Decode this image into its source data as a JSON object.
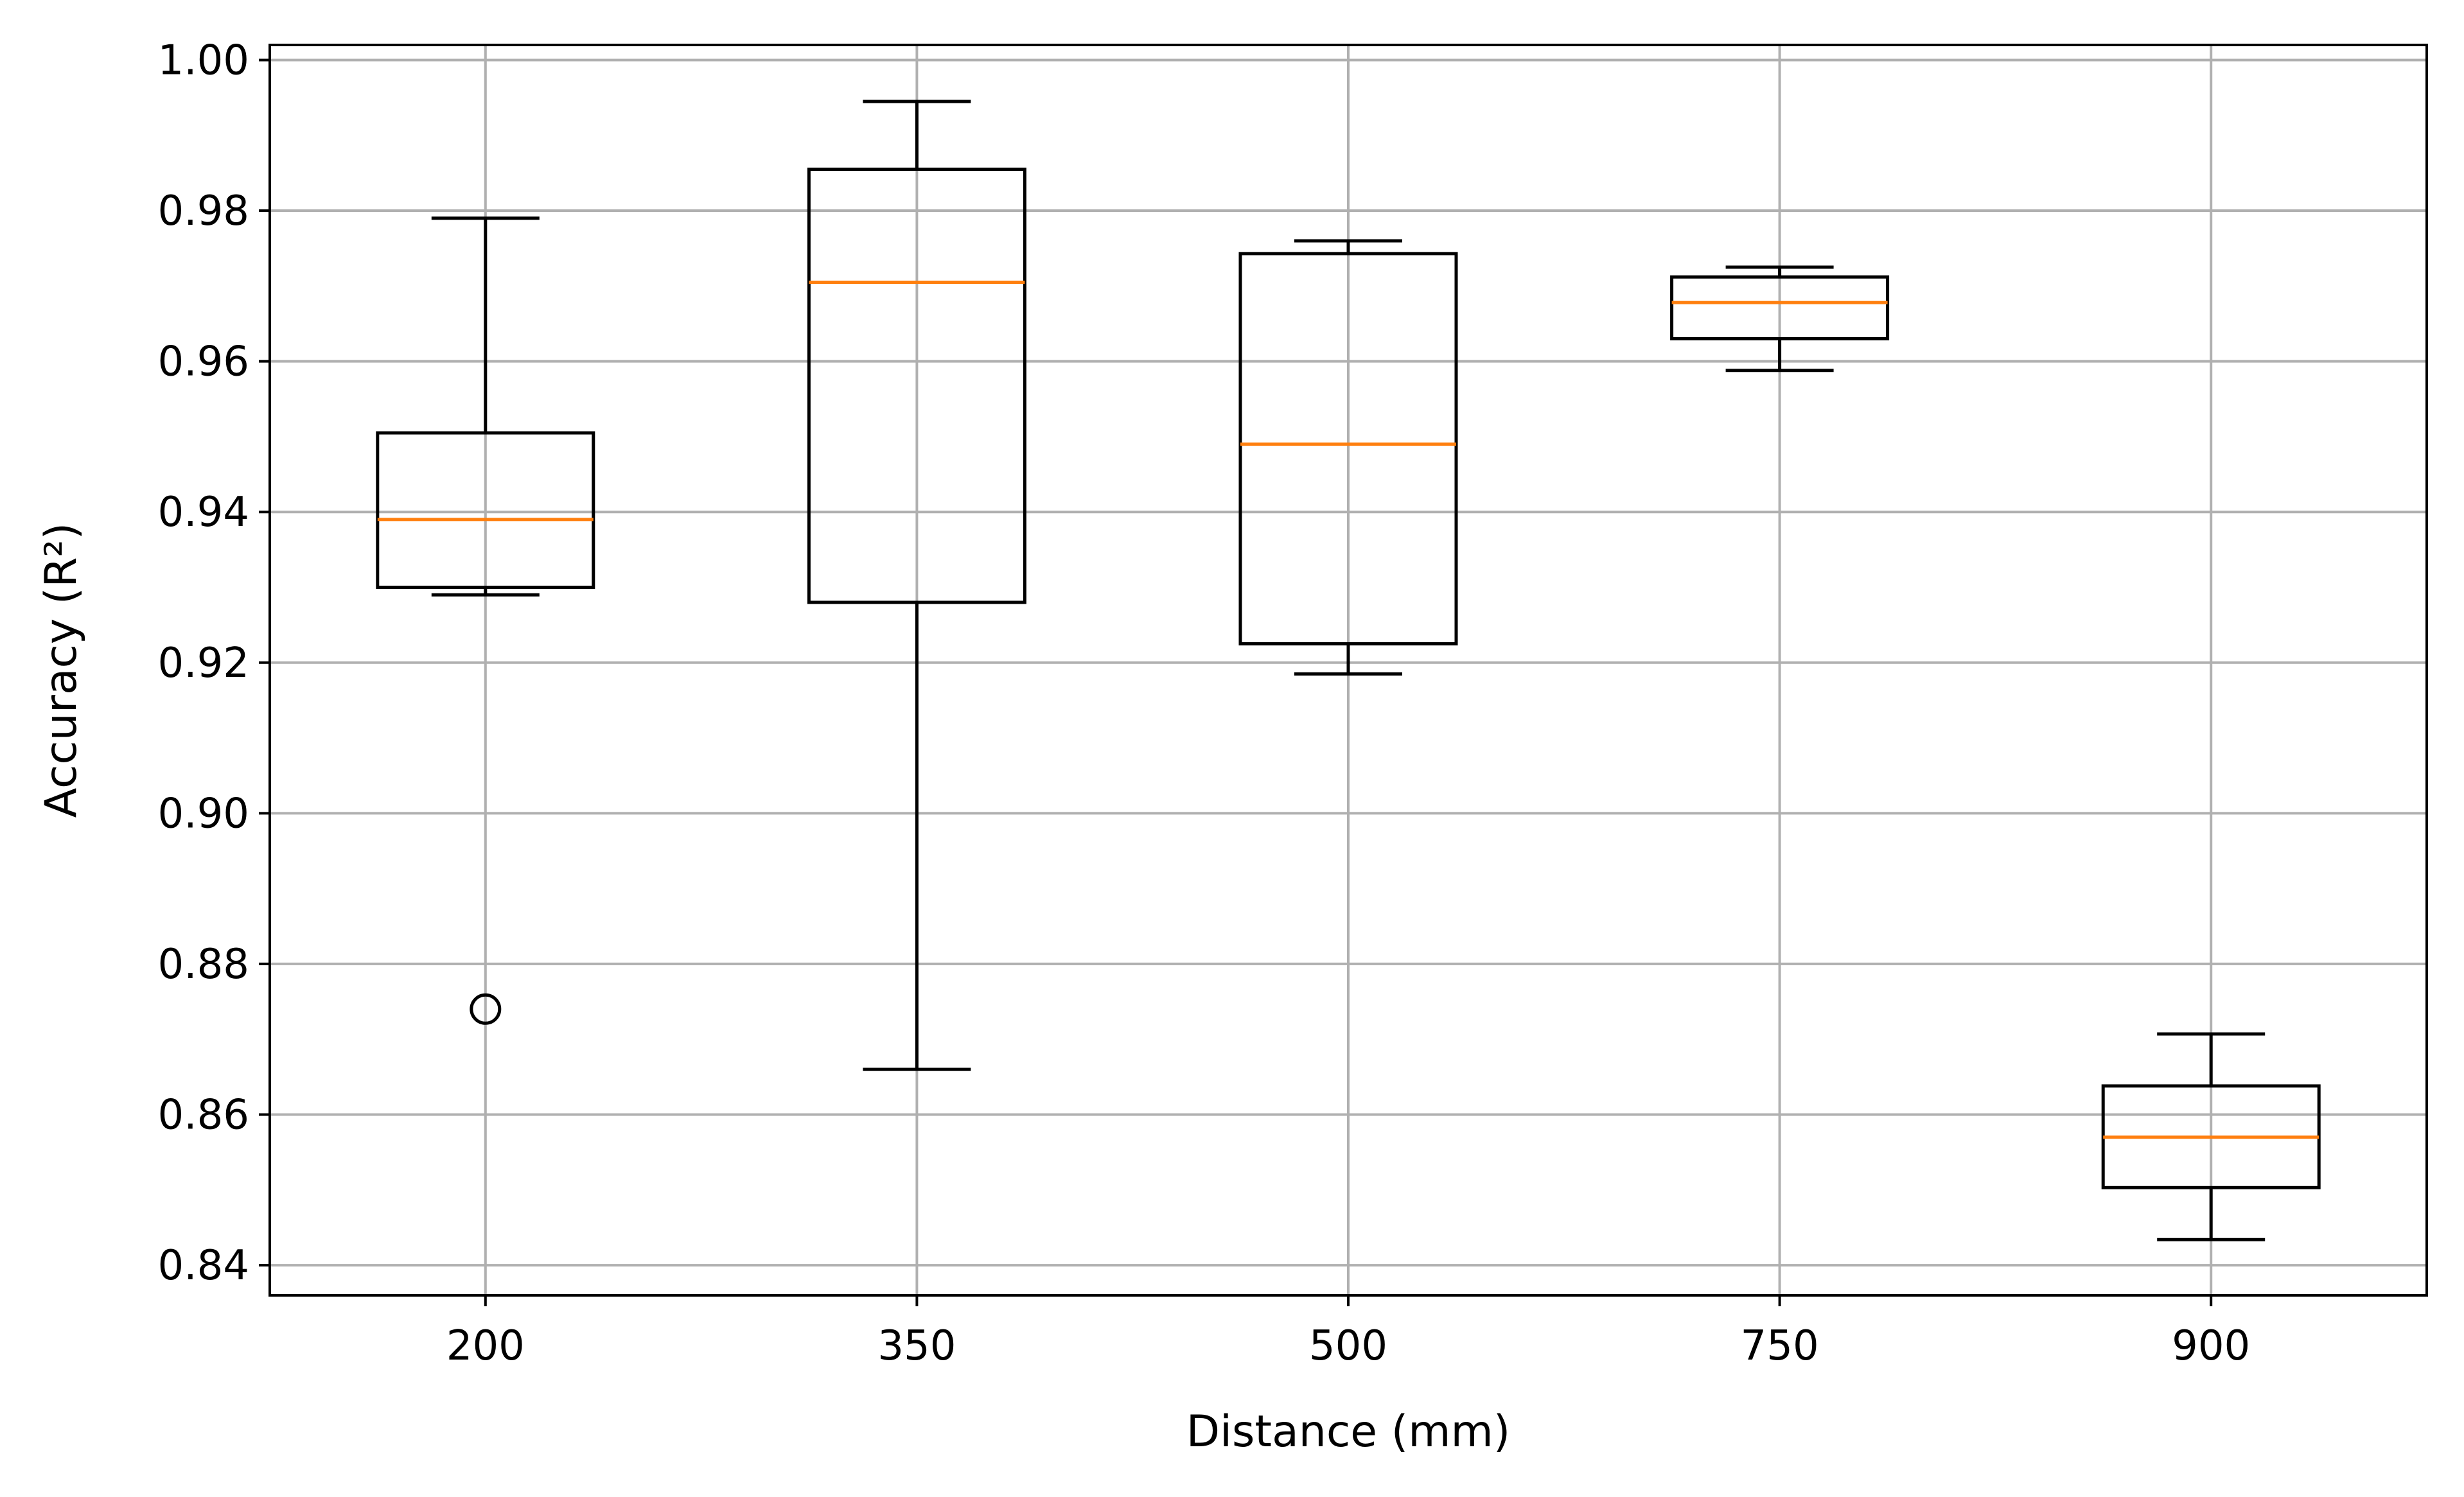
{
  "chart_data": {
    "type": "boxplot",
    "title": "",
    "xlabel": "Distance (mm)",
    "ylabel": "Accuracy (R²)",
    "categories": [
      "200",
      "350",
      "500",
      "750",
      "900"
    ],
    "ylim": [
      0.836,
      1.002
    ],
    "yticks": [
      0.84,
      0.86,
      0.88,
      0.9,
      0.92,
      0.94,
      0.96,
      0.98,
      1.0
    ],
    "ytick_labels": [
      "0.84",
      "0.86",
      "0.88",
      "0.90",
      "0.92",
      "0.94",
      "0.96",
      "0.98",
      "1.00"
    ],
    "grid": true,
    "colors": {
      "box": "#000000",
      "median": "#ff7f0e",
      "grid": "#b0b0b0"
    },
    "boxes": [
      {
        "category": "200",
        "whisker_low": 0.929,
        "q1": 0.93,
        "median": 0.939,
        "q3": 0.9505,
        "whisker_high": 0.979,
        "outliers": [
          0.874
        ]
      },
      {
        "category": "350",
        "whisker_low": 0.866,
        "q1": 0.928,
        "median": 0.9705,
        "q3": 0.9855,
        "whisker_high": 0.9945,
        "outliers": []
      },
      {
        "category": "500",
        "whisker_low": 0.9185,
        "q1": 0.9225,
        "median": 0.949,
        "q3": 0.9743,
        "whisker_high": 0.976,
        "outliers": []
      },
      {
        "category": "750",
        "whisker_low": 0.9588,
        "q1": 0.963,
        "median": 0.9678,
        "q3": 0.9712,
        "whisker_high": 0.9725,
        "outliers": []
      },
      {
        "category": "900",
        "whisker_low": 0.8434,
        "q1": 0.8503,
        "median": 0.857,
        "q3": 0.8638,
        "whisker_high": 0.8707,
        "outliers": []
      }
    ]
  }
}
